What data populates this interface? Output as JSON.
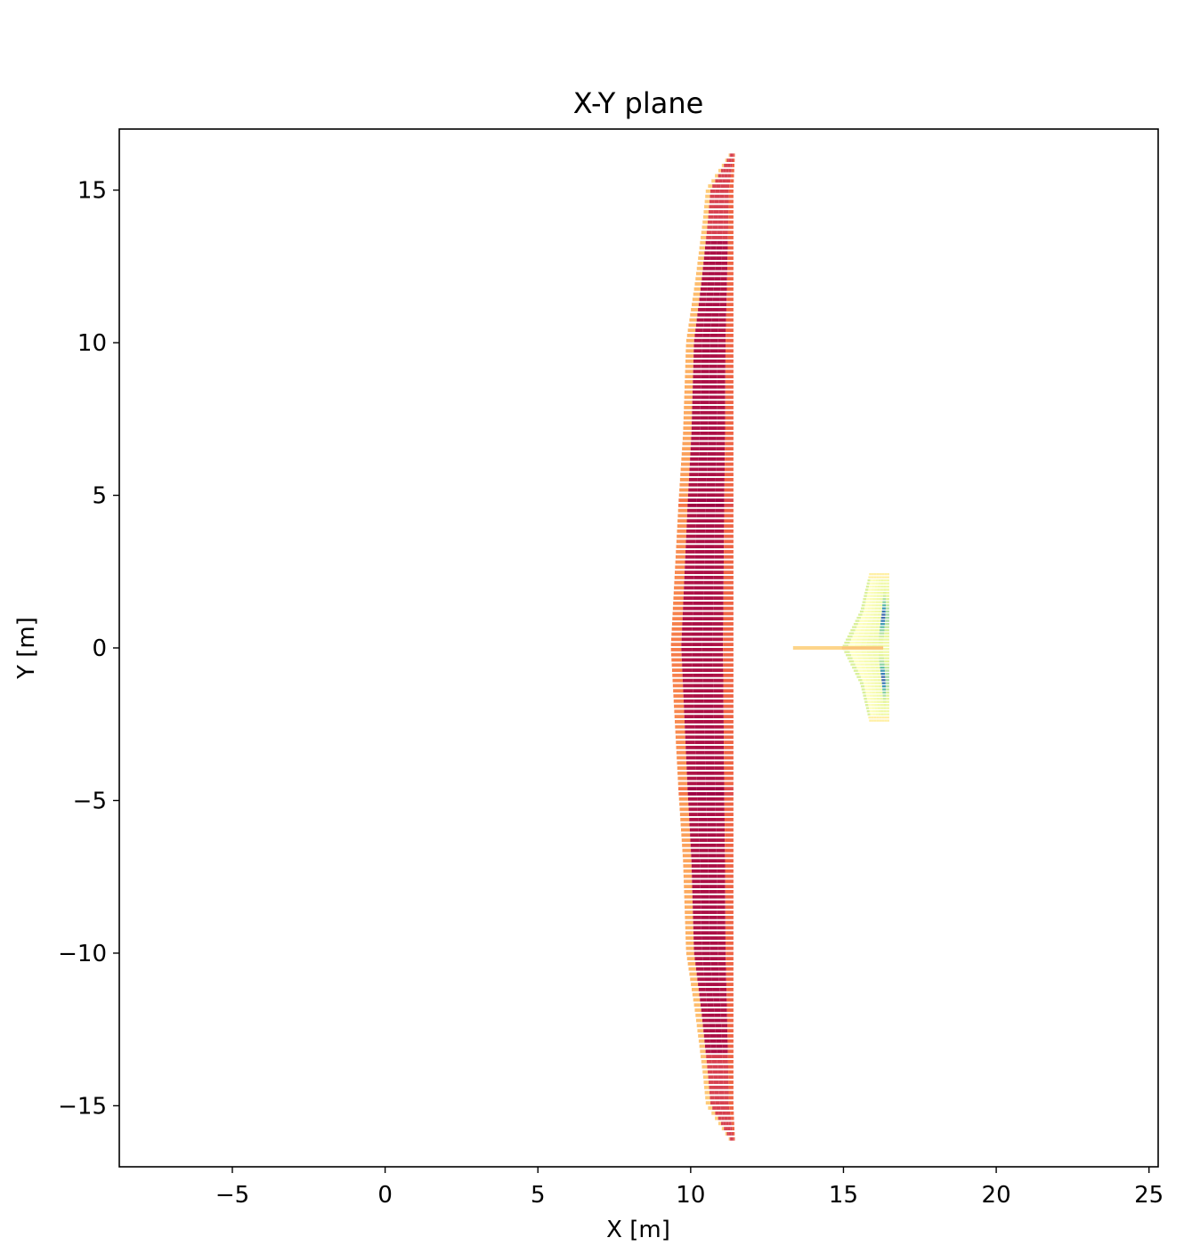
{
  "chart_data": {
    "type": "heatmap",
    "title": "X-Y plane",
    "xlabel": "X [m]",
    "ylabel": "Y [m]",
    "xlim": [
      -8.7,
      25.3
    ],
    "ylim": [
      -17.0,
      17.0
    ],
    "xticks": [
      -5,
      0,
      5,
      10,
      15,
      20,
      25
    ],
    "xtick_labels": [
      "−5",
      "0",
      "5",
      "10",
      "15",
      "20",
      "25"
    ],
    "yticks": [
      -15,
      -10,
      -5,
      0,
      5,
      10,
      15
    ],
    "ytick_labels": [
      "−15",
      "−10",
      "−5",
      "0",
      "5",
      "10",
      "15"
    ],
    "grid": false,
    "colormap": "Spectral",
    "colormap_colors": [
      "#9e0142",
      "#d53e4f",
      "#f46d43",
      "#fdae61",
      "#fee08b",
      "#ffffbf",
      "#e6f598",
      "#abdda4",
      "#66c2a5",
      "#3288bd",
      "#5e4fa2"
    ],
    "surfaces": [
      {
        "name": "main-wing",
        "x_le": [
          [
            0.0,
            9.35
          ],
          [
            4.7,
            9.6
          ],
          [
            7.0,
            9.75
          ],
          [
            10.0,
            9.85
          ],
          [
            12.0,
            10.15
          ],
          [
            14.0,
            10.4
          ],
          [
            15.0,
            10.5
          ],
          [
            16.2,
            11.3
          ]
        ],
        "x_te": [
          [
            0.0,
            11.4
          ],
          [
            4.7,
            11.4
          ],
          [
            15.0,
            11.4
          ],
          [
            16.2,
            11.45
          ]
        ],
        "span": 16.2,
        "strips_per_side": 96,
        "chordwise_panels": 6
      },
      {
        "name": "horizontal-tail",
        "x_le": [
          [
            0.0,
            14.95
          ],
          [
            1.2,
            15.55
          ],
          [
            2.45,
            15.85
          ]
        ],
        "x_te": [
          [
            0.0,
            16.5
          ],
          [
            2.45,
            16.5
          ]
        ],
        "span": 2.45,
        "strips_per_side": 24,
        "chordwise_panels": 8
      },
      {
        "name": "vertical-tail",
        "x_start": 13.35,
        "x_end": 16.3,
        "y": 0.0
      }
    ]
  }
}
